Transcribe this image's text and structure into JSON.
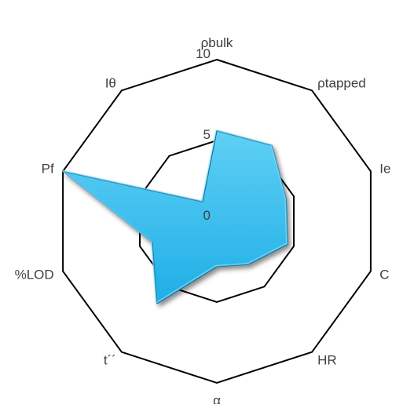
{
  "chart_data": {
    "type": "radar",
    "axes": [
      "ρbulk",
      "ρtapped",
      "Ie",
      "C",
      "HR",
      "α",
      "t´´",
      "%LOD",
      "Pf",
      "Iθ"
    ],
    "series": [
      {
        "values": [
          5.6,
          5.8,
          4.5,
          4.6,
          3.3,
          2.8,
          6.3,
          4.2,
          10.0,
          1.5
        ]
      }
    ],
    "rlim": [
      0,
      10
    ],
    "ticks": [
      0,
      5,
      10
    ],
    "tick_labels": [
      "0",
      "5",
      "10"
    ],
    "grid": true,
    "legend": "none",
    "colors": {
      "fill": "#1eaee6",
      "fill_light": "#5fd0f5",
      "fill_dark": "#0a6f9c",
      "grid": "#000000",
      "text": "#404040"
    }
  }
}
